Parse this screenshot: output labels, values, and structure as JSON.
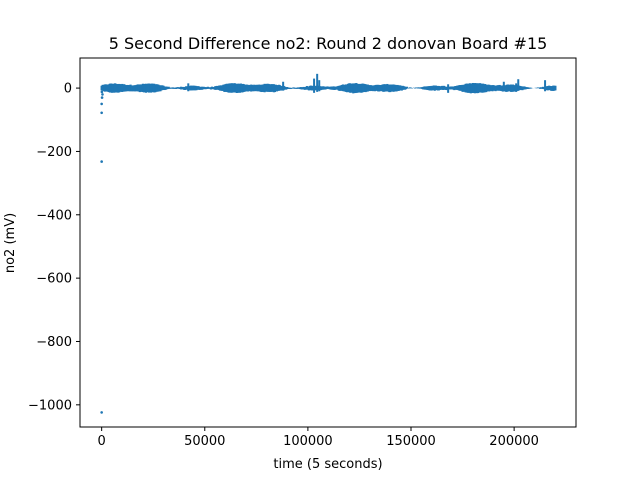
{
  "chart_data": {
    "type": "scatter",
    "title": "5 Second Difference no2: Round 2 donovan Board #15",
    "xlabel": "time (5 seconds)",
    "ylabel": "no2 (mV)",
    "xlim": [
      -10500,
      230000
    ],
    "ylim": [
      -1070,
      95
    ],
    "x_ticks": [
      0,
      50000,
      100000,
      150000,
      200000
    ],
    "x_tick_labels": [
      "0",
      "50000",
      "100000",
      "150000",
      "200000"
    ],
    "y_ticks": [
      0,
      -200,
      -400,
      -600,
      -800,
      -1000
    ],
    "y_tick_labels": [
      "0",
      "−200",
      "−400",
      "−600",
      "−800",
      "−1000"
    ],
    "grid": false,
    "legend": "none",
    "series_color": "#1f77b4",
    "outliers": [
      {
        "x": 0,
        "y": -1024
      },
      {
        "x": 0,
        "y": -232
      },
      {
        "x": 0,
        "y": -78
      },
      {
        "x": 0,
        "y": -50
      },
      {
        "x": 200,
        "y": -30
      },
      {
        "x": 400,
        "y": -20
      },
      {
        "x": 100,
        "y": -12
      }
    ],
    "band": {
      "x_start": 0,
      "x_end": 220000,
      "typical_range": [
        -8,
        8
      ],
      "spikes": [
        {
          "x": 42000,
          "y_min": -10,
          "y_max": 15
        },
        {
          "x": 88000,
          "y_min": -8,
          "y_max": 20
        },
        {
          "x": 103000,
          "y_min": -15,
          "y_max": 30
        },
        {
          "x": 104500,
          "y_min": -12,
          "y_max": 45
        },
        {
          "x": 105500,
          "y_min": -10,
          "y_max": 25
        },
        {
          "x": 168000,
          "y_min": -15,
          "y_max": 12
        },
        {
          "x": 195000,
          "y_min": -10,
          "y_max": 20
        },
        {
          "x": 201000,
          "y_min": -12,
          "y_max": 15
        },
        {
          "x": 202000,
          "y_min": -8,
          "y_max": 28
        },
        {
          "x": 215000,
          "y_min": -10,
          "y_max": 25
        }
      ]
    }
  }
}
